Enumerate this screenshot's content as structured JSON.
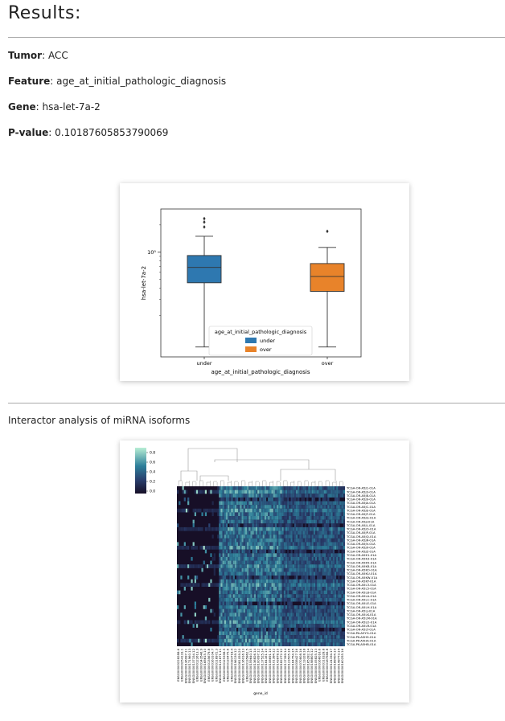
{
  "page": {
    "title": "Results:",
    "fields": [
      {
        "label": "Tumor",
        "value": "ACC"
      },
      {
        "label": "Feature",
        "value": "age_at_initial_pathologic_diagnosis"
      },
      {
        "label": "Gene",
        "value": "hsa-let-7a-2"
      },
      {
        "label": "P-value",
        "value": "0.10187605853790069"
      }
    ],
    "section_title": "Interactor analysis of miRNA isoforms"
  },
  "chart_data": [
    {
      "type": "box",
      "ylabel": "hsa-let-7a-2",
      "xlabel": "age_at_initial_pathologic_diagnosis",
      "yscale": "log",
      "ytick_label": "10⁵",
      "ytick_value": 100000,
      "categories": [
        "under",
        "over"
      ],
      "colors": [
        "#2e78b0",
        "#e8832a"
      ],
      "boxes": [
        {
          "name": "under",
          "whisker_low": 9000,
          "q1": 46000,
          "median": 68000,
          "q3": 92000,
          "whisker_high": 150000,
          "outliers": [
            190000,
            215000,
            235000
          ]
        },
        {
          "name": "over",
          "whisker_low": 9000,
          "q1": 37000,
          "median": 54000,
          "q3": 75000,
          "whisker_high": 113000,
          "outliers": [
            170000
          ]
        }
      ],
      "legend": {
        "title": "age_at_initial_pathologic_diagnosis",
        "entries": [
          "under",
          "over"
        ],
        "placement": "bottom-center"
      }
    },
    {
      "type": "heatmap",
      "xlabel": "gene_id",
      "colorbar_ticks": [
        "0.8",
        "0.6",
        "0.4",
        "0.2",
        "0.0"
      ],
      "row_labels": [
        "TCGA-OR-A5J1-01A",
        "TCGA-OR-A5J3-01A",
        "TCGA-OR-A5J8-01A",
        "TCGA-OR-A5J9-01A",
        "TCGA-OR-A5JA-01A",
        "TCGA-OR-A5JC-01A",
        "TCGA-OR-A5JE-01A",
        "TCGA-OR-A5JF-01A",
        "TCGA-OR-A5JG-01A",
        "TCGA-OR-A5JJ-01A",
        "TCGA-OR-A5JL-01A",
        "TCGA-OR-A5JO-01A",
        "TCGA-OR-A5JP-01A",
        "TCGA-OR-A5JQ-01A",
        "TCGA-OR-A5JR-01A",
        "TCGA-OR-A5JV-01A",
        "TCGA-OR-A5JX-01A",
        "TCGA-OR-A5JZ-01A",
        "TCGA-OR-A5K1-01A",
        "TCGA-OR-A5K3-01A",
        "TCGA-OR-A5K5-01A",
        "TCGA-OR-A5K8-01A",
        "TCGA-OR-A5KO-01A",
        "TCGA-OR-A5KU-01A",
        "TCGA-OR-A5KW-01A",
        "TCGA-OR-A5KY-01A",
        "TCGA-OR-A5L3-01A",
        "TCGA-OR-A5L5-01A",
        "TCGA-OR-A5L8-01A",
        "TCGA-OR-A5LA-01A",
        "TCGA-OR-A5LC-01A",
        "TCGA-OR-A5LE-01A",
        "TCGA-OR-A5LH-01A",
        "TCGA-OR-A5LJ-01A",
        "TCGA-OR-A5LK-01A",
        "TCGA-OR-A5LM-01A",
        "TCGA-OR-A5LO-01A",
        "TCGA-OR-A5LR-01A",
        "TCGA-OR-A5LT-01A",
        "TCGA-PA-A5YG-01A",
        "TCGA-PK-A5H9-01A",
        "TCGA-PK-A5HA-01A",
        "TCGA-PK-A5HB-01A"
      ],
      "col_labels": [
        "ENSG00000228288.6",
        "ENSG00000254133.1",
        "ENSG00000136997.11",
        "ENSG00000171960.13",
        "ENSG00000137154.12",
        "ENSG00000122613.3",
        "ENSG00000143546.9",
        "ENSG00000168615.10",
        "ENSG00000135679.8",
        "ENSG00000163104.7",
        "ENSG00000118972.3",
        "ENSG00000121671.11",
        "ENSG00000125398.5",
        "ENSG00000130475.6",
        "ENSG00000183718.4",
        "ENSG00000196139.12",
        "ENSG00000081059.20",
        "ENSG00000116016.13",
        "ENSG00000135862.5",
        "ENSG00000159640.15",
        "ENSG00000136826.14",
        "ENSG00000100097.12",
        "ENSG00000117525.14",
        "ENSG00000164161.10",
        "ENSG00000108691.10",
        "ENSG00000101384.12",
        "ENSG00000143878.10",
        "ENSG00000182272.12",
        "ENSG00000117399.14",
        "ENSG00000123505.16",
        "ENSG00000164754.15",
        "ENSG00000038427.16",
        "ENSG00000070808.16",
        "ENSG00000113328.18",
        "ENSG00000165282.14",
        "ENSG00000198805.12",
        "ENSG00000105825.13",
        "ENSG00000166016.6",
        "ENSG00000110328.8",
        "ENSG00000187566.8",
        "ENSG00000124194.17",
        "ENSG00000188404.10",
        "ENSG00000148773.14",
        "ENSG00000160255.16"
      ]
    }
  ]
}
